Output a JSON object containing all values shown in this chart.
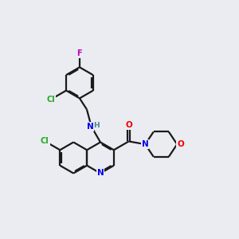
{
  "background_color": "#ebebf2",
  "bond_color": "#1a1a1a",
  "atom_colors": {
    "N": "#0000ee",
    "O": "#ee0000",
    "Cl": "#22aa22",
    "F": "#bb00bb",
    "H_label": "#448888",
    "C": "#1a1a1a"
  },
  "lw": 1.6,
  "fs": 7.0,
  "r": 0.65
}
